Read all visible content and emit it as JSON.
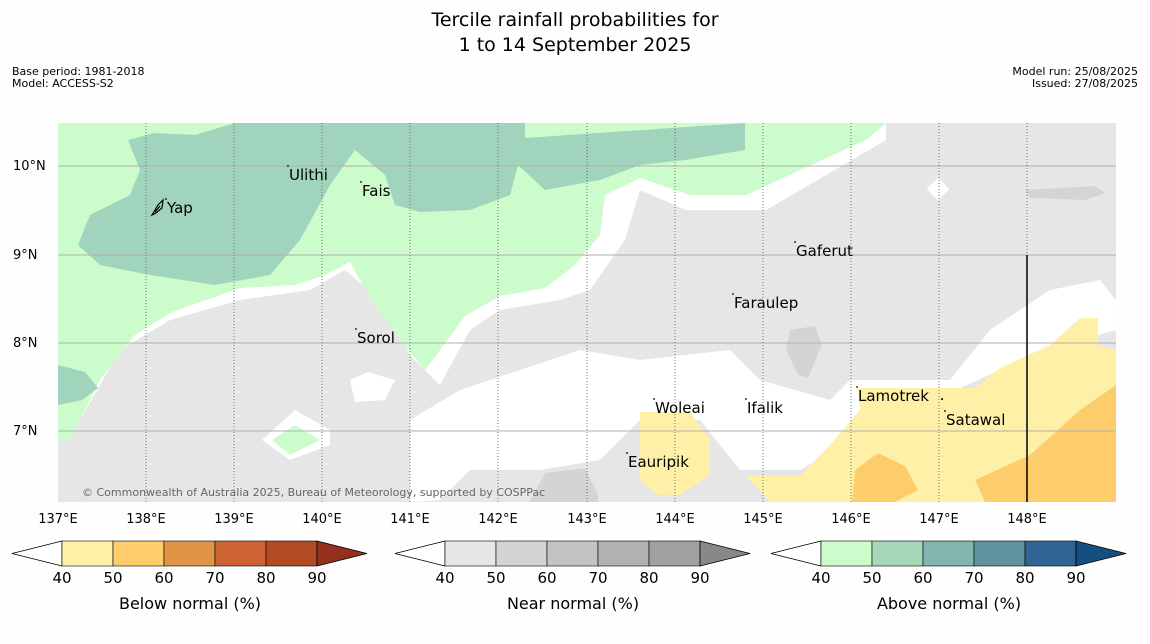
{
  "title_line1": "Tercile rainfall probabilities for",
  "title_line2": "1 to 14 September 2025",
  "meta": {
    "base_period": "Base period: 1981-2018",
    "model": "Model: ACCESS-S2",
    "model_run": "Model run: 25/08/2025",
    "issued": "Issued: 27/08/2025"
  },
  "copyright": "© Commonwealth of Australia 2025, Bureau of Meteorology, supported by COSPPac",
  "lat_labels": [
    "10°N",
    "9°N",
    "8°N",
    "7°N"
  ],
  "lon_labels": [
    "137°E",
    "138°E",
    "139°E",
    "140°E",
    "141°E",
    "142°E",
    "143°E",
    "144°E",
    "145°E",
    "146°E",
    "147°E",
    "148°E"
  ],
  "places": [
    "Yap",
    "Ulithi",
    "Fais",
    "Gaferut",
    "Faraulep",
    "Sorol",
    "Woleai",
    "Ifalik",
    "Lamotrek",
    "Satawal",
    "Eauripik"
  ],
  "colorbars": [
    {
      "label": "Below normal (%)",
      "colors": [
        "#fff0a8",
        "#fdcd6c",
        "#e29446",
        "#cd6333",
        "#b04b24",
        "#94301c"
      ]
    },
    {
      "label": "Near normal (%)",
      "colors": [
        "#e6e6e6",
        "#d4d4d4",
        "#c3c3c3",
        "#b1b1b1",
        "#a0a0a0",
        "#888888"
      ]
    },
    {
      "label": "Above normal (%)",
      "colors": [
        "#ccfccc",
        "#a4d8b8",
        "#80b6ad",
        "#5e94a0",
        "#2f6495",
        "#174e80"
      ]
    }
  ],
  "tick_values": [
    "40",
    "50",
    "60",
    "70",
    "80",
    "90"
  ]
}
